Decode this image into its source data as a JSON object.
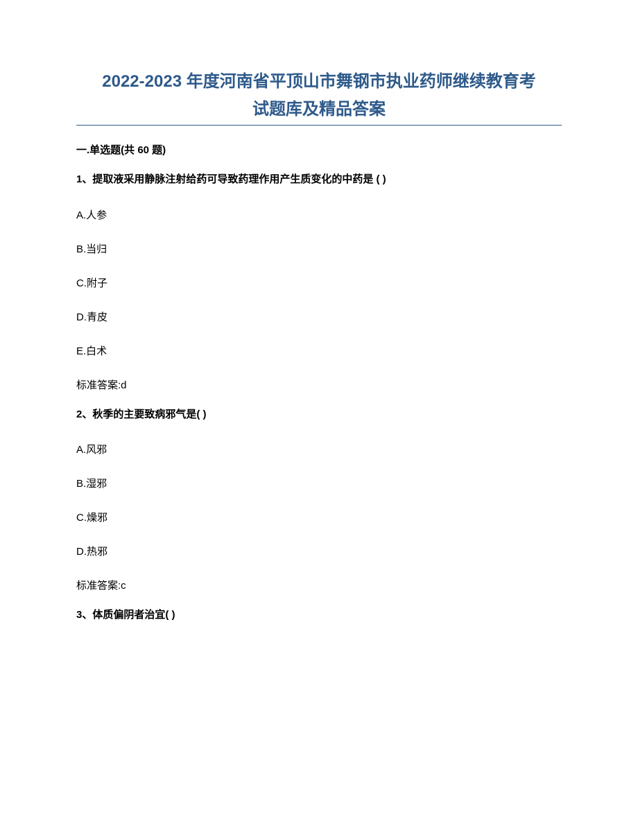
{
  "title_line1": "2022-2023 年度河南省平顶山市舞钢市执业药师继续教育考",
  "title_line2": "试题库及精品答案",
  "section_header": "一.单选题(共 60 题)",
  "questions": [
    {
      "text": "1、提取液采用静脉注射给药可导致药理作用产生质变化的中药是 ( )",
      "options": [
        "A.人参",
        "B.当归",
        "C.附子",
        "D.青皮",
        "E.白术"
      ],
      "answer": "标准答案:d"
    },
    {
      "text": "2、秋季的主要致病邪气是( )",
      "options": [
        "A.风邪",
        "B.湿邪",
        "C.燥邪",
        "D.热邪"
      ],
      "answer": "标准答案:c"
    },
    {
      "text": "3、体质偏阴者治宜( )",
      "options": [],
      "answer": ""
    }
  ],
  "colors": {
    "title_color": "#2e5a8a",
    "text_color": "#000000",
    "background": "#ffffff"
  },
  "typography": {
    "title_fontsize": 24,
    "body_fontsize": 15,
    "title_weight": "bold"
  }
}
